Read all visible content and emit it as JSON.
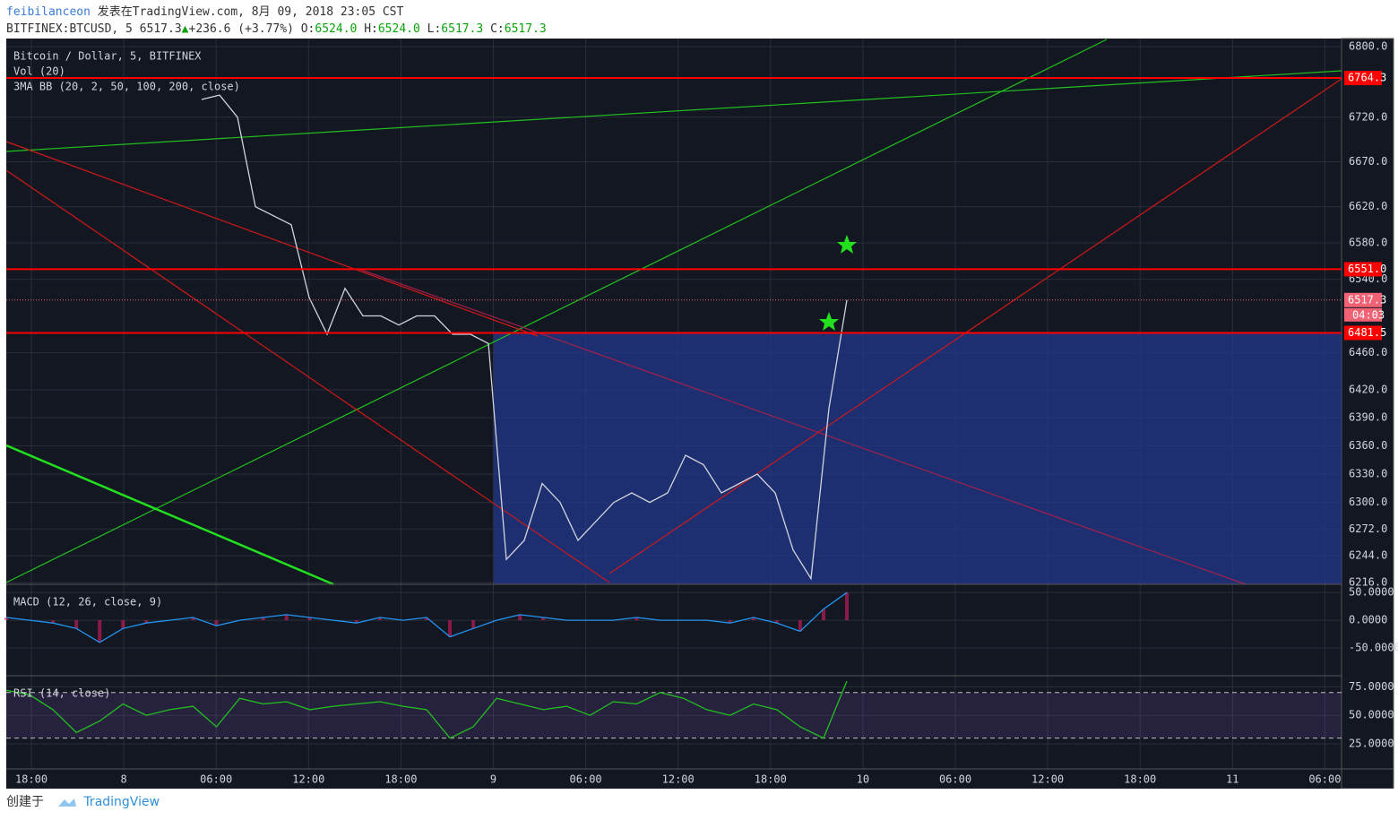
{
  "header": {
    "user": "feibilanceon",
    "published": "发表在TradingView.com, 8月 09, 2018 23:05 CST",
    "symbol": "BITFINEX:BTCUSD, 5 6517.3",
    "change": "+236.6 (+3.77%)",
    "o_label": "O:",
    "o": "6524.0",
    "h_label": "H:",
    "h": "6524.0",
    "l_label": "L:",
    "l": "6517.3",
    "c_label": "C:",
    "c": "6517.3"
  },
  "chart_data": [
    {
      "type": "line",
      "title": "Bitcoin / Dollar, 5, BITFINEX",
      "annotations": [
        "Vol (20)",
        "3MA BB (20, 2, 50, 100, 200, close)"
      ],
      "log_scale": true,
      "ylim": [
        6216,
        6800
      ],
      "yticks": [
        {
          "value": 6800,
          "label": "6800.0"
        },
        {
          "value": 6720,
          "label": "6720.0"
        },
        {
          "value": 6670,
          "label": "6670.0"
        },
        {
          "value": 6620,
          "label": "6620.0"
        },
        {
          "value": 6580,
          "label": "6580.0"
        },
        {
          "value": 6540,
          "label": "6540.0"
        },
        {
          "value": 6460,
          "label": "6460.0"
        },
        {
          "value": 6420,
          "label": "6420.0"
        },
        {
          "value": 6390,
          "label": "6390.0"
        },
        {
          "value": 6360,
          "label": "6360.0"
        },
        {
          "value": 6330,
          "label": "6330.0"
        },
        {
          "value": 6300,
          "label": "6300.0"
        },
        {
          "value": 6272,
          "label": "6272.0"
        },
        {
          "value": 6244,
          "label": "6244.0"
        },
        {
          "value": 6216,
          "label": "6216.0"
        }
      ],
      "series": [
        {
          "color": "#d1d4dc",
          "values": [
            6740,
            6745,
            6720,
            6620,
            6610,
            6600,
            6520,
            6480,
            6530,
            6500,
            6500,
            6490,
            6500,
            6500,
            6480,
            6480,
            6470,
            6240,
            6260,
            6320,
            6300,
            6260,
            6280,
            6300,
            6310,
            6300,
            6310,
            6350,
            6340,
            6310,
            6320,
            6330,
            6310,
            6250,
            6220,
            6400,
            6517.3
          ]
        }
      ],
      "price_lines": [
        {
          "value": 6764.3,
          "label": "6764.3",
          "color": "#ff0000"
        },
        {
          "value": 6551,
          "label": "6551.0",
          "color": "#ff0000"
        },
        {
          "value": 6517.3,
          "label": "6517.3",
          "color": "#f06274"
        },
        {
          "value": 6481.5,
          "label": "6481.5",
          "color": "#ff0000"
        }
      ],
      "countdown": "04:03",
      "grid": true
    },
    {
      "type": "line",
      "title": "MACD (12, 26, close, 9)",
      "ylim": [
        -97,
        60
      ],
      "yticks": [
        {
          "value": 50,
          "label": "50.0000"
        },
        {
          "value": 0,
          "label": "0.0000"
        },
        {
          "value": -50,
          "label": "-50.0000"
        }
      ],
      "series": [
        {
          "color": "#2196f3",
          "values": [
            5,
            0,
            -5,
            -15,
            -40,
            -15,
            -5,
            0,
            5,
            -10,
            0,
            5,
            10,
            5,
            0,
            -5,
            5,
            0,
            5,
            -30,
            -15,
            0,
            10,
            5,
            0,
            0,
            0,
            5,
            0,
            0,
            0,
            -5,
            5,
            -5,
            -20,
            20,
            50
          ]
        }
      ],
      "grid": true
    },
    {
      "type": "line",
      "title": "RSI (14, close)",
      "ylim": [
        3,
        84
      ],
      "bands": [
        70,
        30
      ],
      "yticks": [
        {
          "value": 75,
          "label": "75.0000"
        },
        {
          "value": 50,
          "label": "50.0000"
        },
        {
          "value": 25,
          "label": "25.0000"
        }
      ],
      "series": [
        {
          "color": "#22c01e",
          "values": [
            72,
            68,
            55,
            35,
            45,
            60,
            50,
            55,
            58,
            40,
            65,
            60,
            62,
            55,
            58,
            60,
            62,
            58,
            55,
            30,
            40,
            65,
            60,
            55,
            58,
            50,
            62,
            60,
            70,
            65,
            55,
            50,
            60,
            55,
            40,
            30,
            80
          ]
        }
      ],
      "grid": true
    }
  ],
  "time_axis": {
    "labels": [
      "18:00",
      "8",
      "06:00",
      "12:00",
      "18:00",
      "9",
      "06:00",
      "12:00",
      "18:00",
      "10",
      "06:00",
      "12:00",
      "18:00",
      "11",
      "06:00"
    ]
  },
  "footer": {
    "created": "创建于",
    "brand": "TradingView"
  }
}
